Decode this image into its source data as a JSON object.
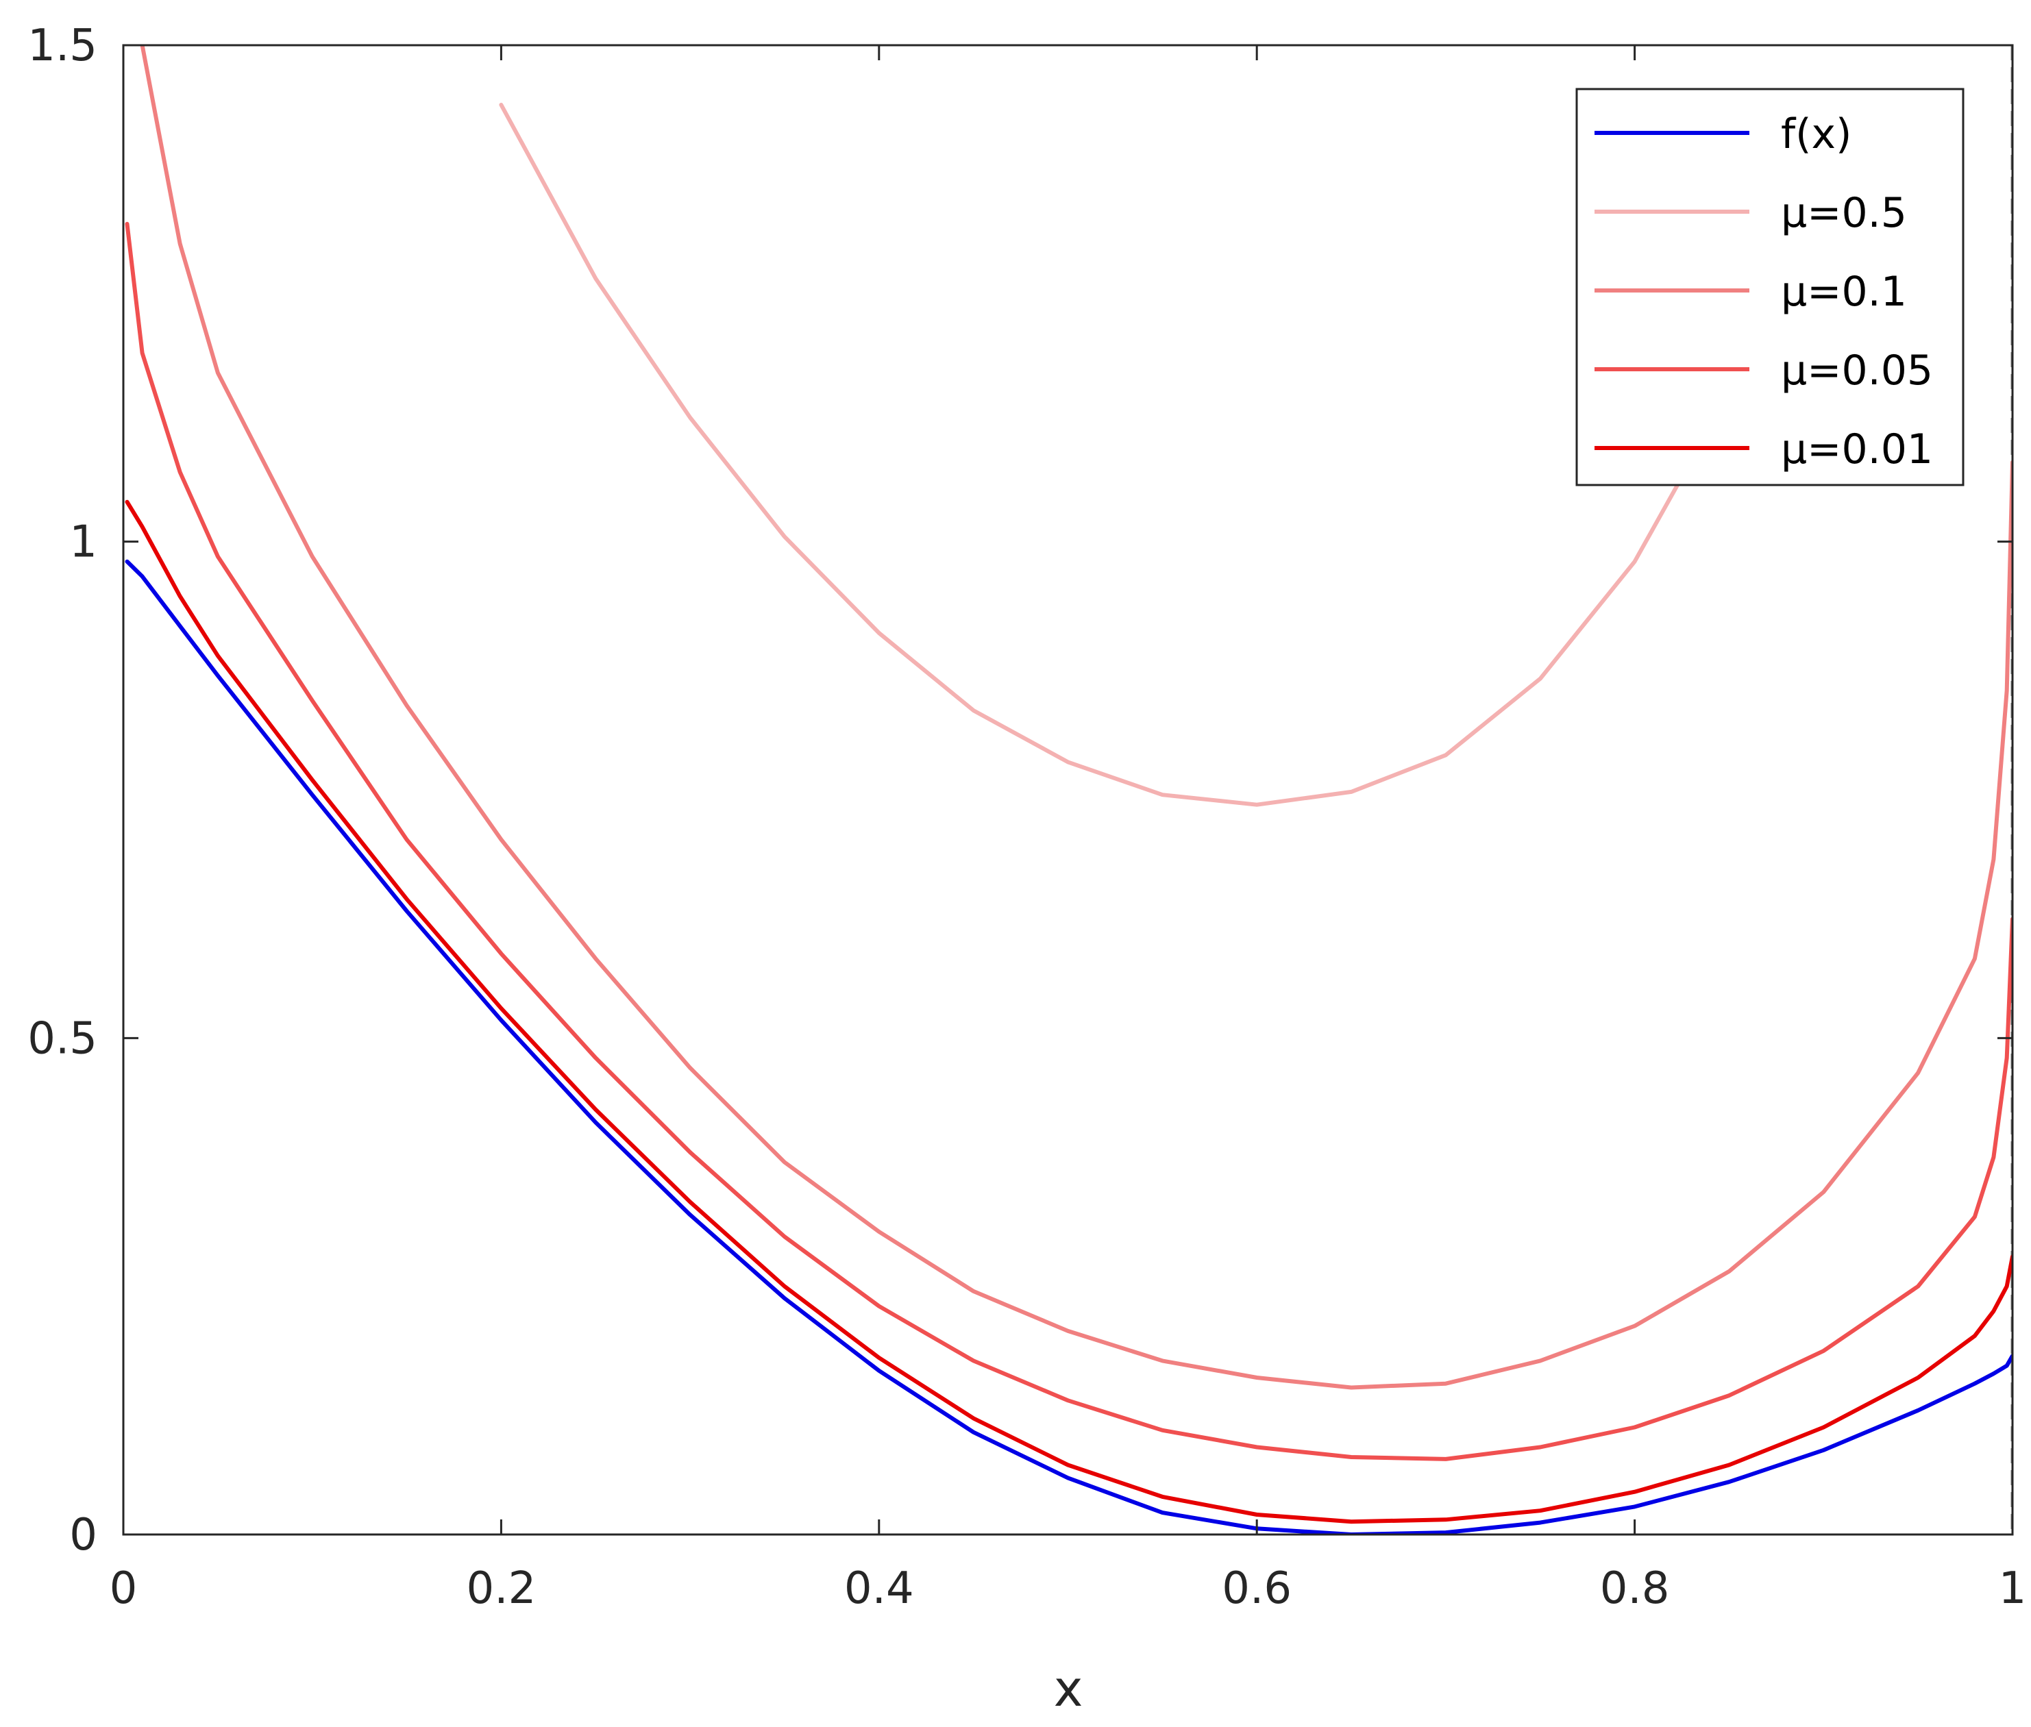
{
  "chart_data": {
    "type": "line",
    "title": "",
    "xlabel": "x",
    "ylabel": "",
    "xlim": [
      0,
      1
    ],
    "ylim": [
      0,
      1.5
    ],
    "xticks": [
      "0",
      "0.2",
      "0.4",
      "0.6",
      "0.8",
      "1"
    ],
    "yticks": [
      "0",
      "0.5",
      "1",
      "1.5"
    ],
    "grid": false,
    "legend_position": "top-right",
    "boundary_line": {
      "x": 1,
      "style": "dashed",
      "color": "#808080"
    },
    "x": [
      0.002,
      0.01,
      0.03,
      0.05,
      0.1,
      0.15,
      0.2,
      0.25,
      0.3,
      0.35,
      0.4,
      0.45,
      0.5,
      0.55,
      0.6,
      0.65,
      0.7,
      0.75,
      0.8,
      0.85,
      0.9,
      0.95,
      0.98,
      0.99,
      0.997,
      1.0
    ],
    "series": [
      {
        "name": "f(x)",
        "color": "#0000e6",
        "values": [
          0.98,
          0.965,
          0.915,
          0.865,
          0.745,
          0.628,
          0.518,
          0.415,
          0.322,
          0.238,
          0.165,
          0.103,
          0.057,
          0.022,
          0.006,
          0.0,
          0.002,
          0.012,
          0.028,
          0.053,
          0.085,
          0.125,
          0.152,
          0.162,
          0.17,
          0.18
        ]
      },
      {
        "name": "μ=0.5",
        "color": "#f4b1b1",
        "values": [
          null,
          null,
          null,
          null,
          null,
          null,
          1.44,
          1.265,
          1.125,
          1.005,
          0.908,
          0.83,
          0.778,
          0.745,
          0.735,
          0.748,
          0.785,
          0.862,
          0.98,
          1.15,
          1.36,
          null,
          null,
          null,
          null,
          null
        ]
      },
      {
        "name": "μ=0.1",
        "color": "#f08080",
        "values": [
          1.6,
          1.5,
          1.3,
          1.17,
          0.985,
          0.835,
          0.7,
          0.58,
          0.47,
          0.375,
          0.305,
          0.245,
          0.205,
          0.175,
          0.158,
          0.148,
          0.152,
          0.175,
          0.21,
          0.265,
          0.345,
          0.465,
          0.58,
          0.68,
          0.85,
          1.08
        ]
      },
      {
        "name": "μ=0.05",
        "color": "#f05050",
        "values": [
          1.32,
          1.19,
          1.07,
          0.985,
          0.84,
          0.7,
          0.585,
          0.48,
          0.385,
          0.3,
          0.23,
          0.175,
          0.135,
          0.105,
          0.088,
          0.078,
          0.076,
          0.088,
          0.108,
          0.14,
          0.185,
          0.25,
          0.32,
          0.38,
          0.48,
          0.62
        ]
      },
      {
        "name": "μ=0.01",
        "color": "#e60000",
        "values": [
          1.04,
          1.015,
          0.945,
          0.885,
          0.76,
          0.64,
          0.53,
          0.428,
          0.335,
          0.25,
          0.178,
          0.117,
          0.07,
          0.038,
          0.02,
          0.013,
          0.015,
          0.024,
          0.043,
          0.07,
          0.108,
          0.158,
          0.2,
          0.225,
          0.25,
          0.28
        ]
      }
    ]
  }
}
